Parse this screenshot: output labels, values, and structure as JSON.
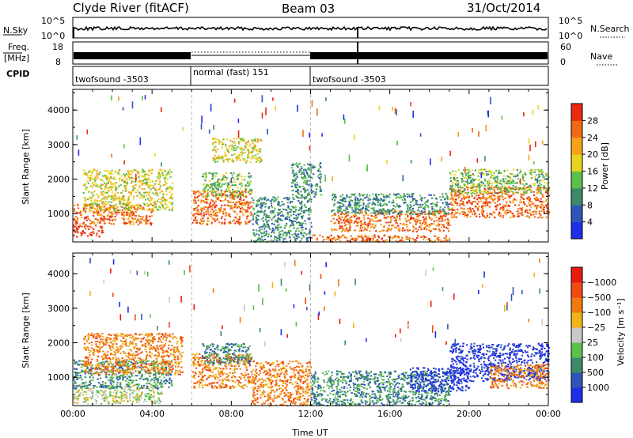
{
  "header": {
    "station": "Clyde River (fitACF)",
    "beam": "Beam 03",
    "date": "31/Oct/2014"
  },
  "top_panels": {
    "nsky_label": "N.Sky",
    "nsky_ticks": [
      "10^5",
      "10^0"
    ],
    "nsearch_label": "N.Search",
    "nsearch_ticks": [
      "10^5",
      "10^0"
    ],
    "freq_label_1": "Freq.",
    "freq_label_2": "[MHz]",
    "freq_ticks": [
      "18",
      "8"
    ],
    "nave_label": "Nave",
    "nave_ticks": [
      "60",
      "0"
    ],
    "cpid_label": "CPID",
    "cpid_segments": [
      {
        "label": "twofsound -3503",
        "start": 0,
        "end": 6
      },
      {
        "label": "normal (fast) 151",
        "start": 6,
        "end": 12
      },
      {
        "label": "twofsound -3503",
        "start": 12,
        "end": 24
      }
    ]
  },
  "chart_data": [
    {
      "type": "heatmap",
      "panel": "power",
      "xlabel": "Time UT",
      "ylabel": "Slant Range [km]",
      "colorbar_label": "Power [dB]",
      "xlim": [
        0,
        24
      ],
      "ylim": [
        180,
        4600
      ],
      "x_ticks": [
        "00:00",
        "04:00",
        "08:00",
        "12:00",
        "16:00",
        "20:00",
        "00:00"
      ],
      "y_ticks": [
        "1000",
        "2000",
        "3000",
        "4000"
      ],
      "colorbar_ticks": [
        "4",
        "8",
        "12",
        "16",
        "20",
        "24",
        "28"
      ],
      "colorbar_colors": [
        "#1f2ee6",
        "#2f56b6",
        "#3d8a6a",
        "#5cc04a",
        "#e9d31e",
        "#f7a218",
        "#f06a14",
        "#ea2a10"
      ],
      "scatter_regions": [
        {
          "t": [
            0.0,
            1.5
          ],
          "r": [
            350,
            700
          ],
          "value": 28
        },
        {
          "t": [
            0.0,
            4.0
          ],
          "r": [
            700,
            1300
          ],
          "value": 26
        },
        {
          "t": [
            0.5,
            5.0
          ],
          "r": [
            1100,
            2300
          ],
          "value": 16
        },
        {
          "t": [
            6.0,
            9.0
          ],
          "r": [
            700,
            1700
          ],
          "value": 26
        },
        {
          "t": [
            6.5,
            9.0
          ],
          "r": [
            1500,
            2200
          ],
          "value": 14
        },
        {
          "t": [
            7.0,
            9.5
          ],
          "r": [
            2500,
            3200
          ],
          "value": 18
        },
        {
          "t": [
            9.0,
            12.0
          ],
          "r": [
            200,
            1500
          ],
          "value": 8
        },
        {
          "t": [
            11.0,
            12.5
          ],
          "r": [
            1500,
            2500
          ],
          "value": 10
        },
        {
          "t": [
            12.0,
            19.0
          ],
          "r": [
            200,
            400
          ],
          "value": 26
        },
        {
          "t": [
            13.0,
            19.0
          ],
          "r": [
            500,
            1100
          ],
          "value": 27
        },
        {
          "t": [
            13.0,
            19.0
          ],
          "r": [
            1000,
            1600
          ],
          "value": 10
        },
        {
          "t": [
            19.0,
            24.0
          ],
          "r": [
            900,
            1800
          ],
          "value": 26
        },
        {
          "t": [
            19.0,
            24.0
          ],
          "r": [
            1600,
            2300
          ],
          "value": 14
        }
      ]
    },
    {
      "type": "heatmap",
      "panel": "velocity",
      "xlabel": "Time UT",
      "ylabel": "Slant Range [km]",
      "colorbar_label": "Velocity [m s⁻¹]",
      "xlim": [
        0,
        24
      ],
      "ylim": [
        180,
        4600
      ],
      "x_ticks": [
        "00:00",
        "04:00",
        "08:00",
        "12:00",
        "16:00",
        "20:00",
        "00:00"
      ],
      "y_ticks": [
        "1000",
        "2000",
        "3000",
        "4000"
      ],
      "colorbar_ticks": [
        "1000",
        "500",
        "100",
        "25",
        "−25",
        "−100",
        "−500",
        "−1000"
      ],
      "colorbar_colors": [
        "#1f2ee6",
        "#2f56b6",
        "#3d8a6a",
        "#5cc04a",
        "#c8c8c8",
        "#f0b418",
        "#f07a10",
        "#f04a10",
        "#ea1a10"
      ],
      "scatter_regions": [
        {
          "t": [
            0.0,
            4.5
          ],
          "r": [
            250,
            800
          ],
          "value": 0
        },
        {
          "t": [
            0.0,
            5.0
          ],
          "r": [
            700,
            1500
          ],
          "value": 60
        },
        {
          "t": [
            0.5,
            5.5
          ],
          "r": [
            1100,
            2300
          ],
          "value": -200
        },
        {
          "t": [
            6.0,
            9.0
          ],
          "r": [
            700,
            1700
          ],
          "value": -300
        },
        {
          "t": [
            6.5,
            9.0
          ],
          "r": [
            1400,
            2000
          ],
          "value": 200
        },
        {
          "t": [
            9.0,
            12.0
          ],
          "r": [
            200,
            1500
          ],
          "value": -150
        },
        {
          "t": [
            12.0,
            19.0
          ],
          "r": [
            200,
            1200
          ],
          "value": 80
        },
        {
          "t": [
            17.0,
            20.0
          ],
          "r": [
            600,
            1300
          ],
          "value": 800
        },
        {
          "t": [
            19.0,
            24.0
          ],
          "r": [
            900,
            2000
          ],
          "value": 900
        },
        {
          "t": [
            21.0,
            24.0
          ],
          "r": [
            700,
            1400
          ],
          "value": -250
        }
      ]
    }
  ]
}
